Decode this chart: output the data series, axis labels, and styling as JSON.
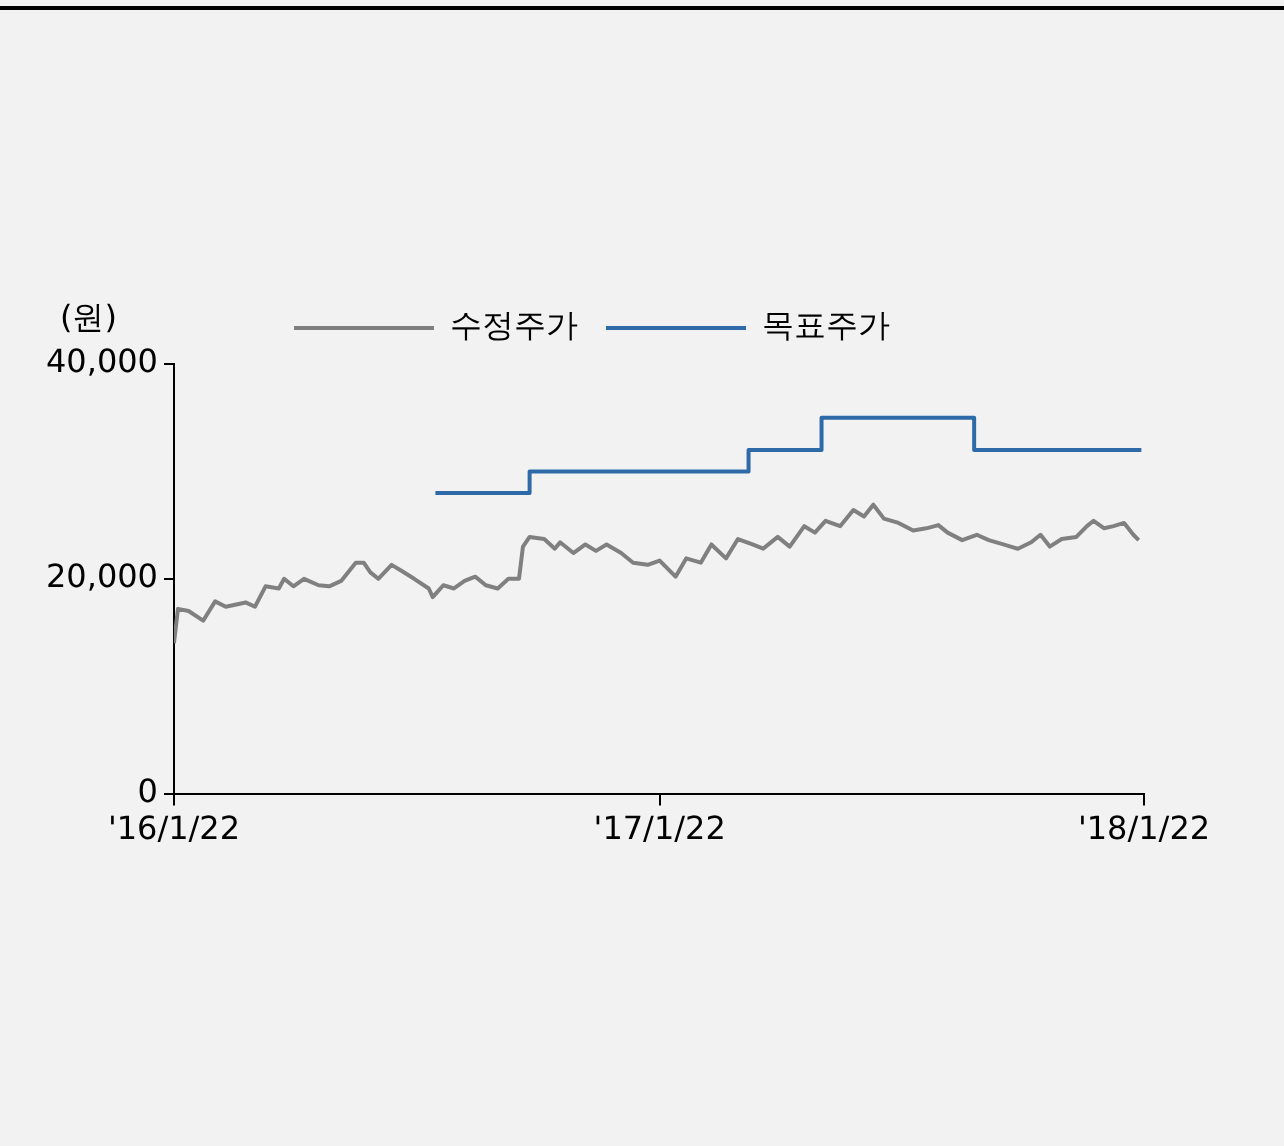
{
  "chart_data": {
    "type": "line",
    "ylabel": "(원)",
    "legend": "top",
    "grid": false,
    "marker": "none",
    "line_style": "solid",
    "xlim": [
      "2016-01-22",
      "2018-01-22"
    ],
    "xticks": [
      {
        "value": "2016-01-22",
        "label": "'16/1/22"
      },
      {
        "value": "2017-01-22",
        "label": "'17/1/22"
      },
      {
        "value": "2018-01-22",
        "label": "'18/1/22"
      }
    ],
    "ylim": [
      0,
      40000
    ],
    "yticks": [
      {
        "value": 0,
        "label": "0"
      },
      {
        "value": 20000,
        "label": "20,000"
      },
      {
        "value": 40000,
        "label": "40,000"
      }
    ],
    "series": [
      {
        "name": "수정주가",
        "color": "#808080",
        "x": [
          "2016-01-22",
          "2016-01-25",
          "2016-02-02",
          "2016-02-13",
          "2016-02-22",
          "2016-03-01",
          "2016-03-16",
          "2016-03-23",
          "2016-03-31",
          "2016-04-10",
          "2016-04-14",
          "2016-04-21",
          "2016-04-29",
          "2016-05-10",
          "2016-05-18",
          "2016-05-27",
          "2016-06-07",
          "2016-06-13",
          "2016-06-18",
          "2016-06-24",
          "2016-07-04",
          "2016-07-12",
          "2016-07-21",
          "2016-08-01",
          "2016-08-04",
          "2016-08-12",
          "2016-08-20",
          "2016-08-28",
          "2016-09-05",
          "2016-09-13",
          "2016-09-22",
          "2016-09-30",
          "2016-10-08",
          "2016-10-11",
          "2016-10-16",
          "2016-10-27",
          "2016-11-04",
          "2016-11-08",
          "2016-11-18",
          "2016-11-27",
          "2016-12-05",
          "2016-12-13",
          "2016-12-24",
          "2017-01-02",
          "2017-01-13",
          "2017-01-22",
          "2017-02-03",
          "2017-02-11",
          "2017-02-22",
          "2017-03-02",
          "2017-03-13",
          "2017-03-22",
          "2017-04-02",
          "2017-04-10",
          "2017-04-21",
          "2017-04-30",
          "2017-05-11",
          "2017-05-19",
          "2017-05-27",
          "2017-06-07",
          "2017-06-17",
          "2017-06-25",
          "2017-07-02",
          "2017-07-10",
          "2017-07-21",
          "2017-08-01",
          "2017-08-11",
          "2017-08-20",
          "2017-08-27",
          "2017-09-07",
          "2017-09-18",
          "2017-09-27",
          "2017-10-08",
          "2017-10-19",
          "2017-10-29",
          "2017-11-05",
          "2017-11-12",
          "2017-11-21",
          "2017-12-02",
          "2017-12-10",
          "2017-12-15",
          "2017-12-23",
          "2017-12-30",
          "2018-01-07",
          "2018-01-14",
          "2018-01-18"
        ],
        "values": [
          14000,
          17200,
          17000,
          16100,
          17900,
          17400,
          17800,
          17400,
          19300,
          19100,
          20000,
          19300,
          20000,
          19400,
          19300,
          19800,
          21500,
          21500,
          20600,
          20000,
          21300,
          20700,
          20000,
          19100,
          18300,
          19400,
          19100,
          19800,
          20200,
          19400,
          19100,
          20000,
          20000,
          23000,
          23900,
          23700,
          22800,
          23400,
          22400,
          23200,
          22600,
          23200,
          22400,
          21500,
          21300,
          21700,
          20200,
          21900,
          21500,
          23200,
          21900,
          23700,
          23200,
          22800,
          23900,
          23000,
          24900,
          24300,
          25400,
          24900,
          26400,
          25800,
          26900,
          25600,
          25200,
          24500,
          24700,
          25000,
          24300,
          23600,
          24100,
          23600,
          23200,
          22800,
          23400,
          24100,
          23000,
          23700,
          23900,
          24900,
          25400,
          24700,
          24900,
          25200,
          24100,
          23600
        ]
      },
      {
        "name": "목표주가",
        "type": "step",
        "color": "#2e6aa8",
        "x": [
          "2016-08-06",
          "2016-10-16",
          "2017-03-30",
          "2017-05-24",
          "2017-09-16",
          "2018-01-20"
        ],
        "values": [
          28000,
          30000,
          32000,
          35000,
          32000,
          32000
        ]
      }
    ]
  }
}
